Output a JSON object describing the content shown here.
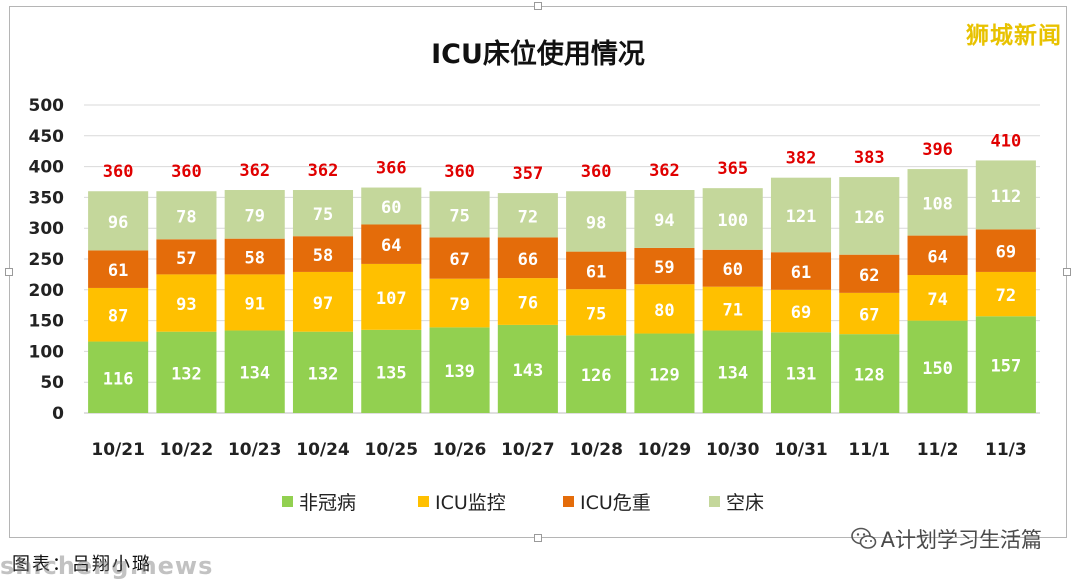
{
  "brand": "狮城新闻",
  "caption": "图表：吕翔小璐",
  "domain_watermark": "shicheng.news",
  "wechat_account": "A计划学习生活篇",
  "icons": {
    "wechat": "wechat-icon"
  },
  "chart_data": {
    "type": "bar",
    "stacked": true,
    "title": "ICU床位使用情况",
    "xlabel": "",
    "ylabel": "",
    "ylim": [
      0,
      500
    ],
    "yticks": [
      0,
      50,
      100,
      150,
      200,
      250,
      300,
      350,
      400,
      450,
      500
    ],
    "grid": true,
    "legend_position": "bottom",
    "categories": [
      "10/21",
      "10/22",
      "10/23",
      "10/24",
      "10/25",
      "10/26",
      "10/27",
      "10/28",
      "10/29",
      "10/30",
      "10/31",
      "11/1",
      "11/2",
      "11/3"
    ],
    "series": [
      {
        "name": "非冠病",
        "color": "#92d050",
        "values": [
          116,
          132,
          134,
          132,
          135,
          139,
          143,
          126,
          129,
          134,
          131,
          128,
          150,
          157
        ]
      },
      {
        "name": "ICU监控",
        "color": "#ffc000",
        "values": [
          87,
          93,
          91,
          97,
          107,
          79,
          76,
          75,
          80,
          71,
          69,
          67,
          74,
          72
        ]
      },
      {
        "name": "ICU危重",
        "color": "#e46c0a",
        "values": [
          61,
          57,
          58,
          58,
          64,
          67,
          66,
          61,
          59,
          60,
          61,
          62,
          64,
          69
        ]
      },
      {
        "name": "空床",
        "color": "#c4d79b",
        "values": [
          96,
          78,
          79,
          75,
          60,
          75,
          72,
          98,
          94,
          100,
          121,
          126,
          108,
          112
        ]
      }
    ],
    "totals": [
      360,
      360,
      362,
      362,
      366,
      360,
      357,
      360,
      362,
      365,
      382,
      383,
      396,
      410
    ],
    "total_label_color": "#e00000"
  }
}
